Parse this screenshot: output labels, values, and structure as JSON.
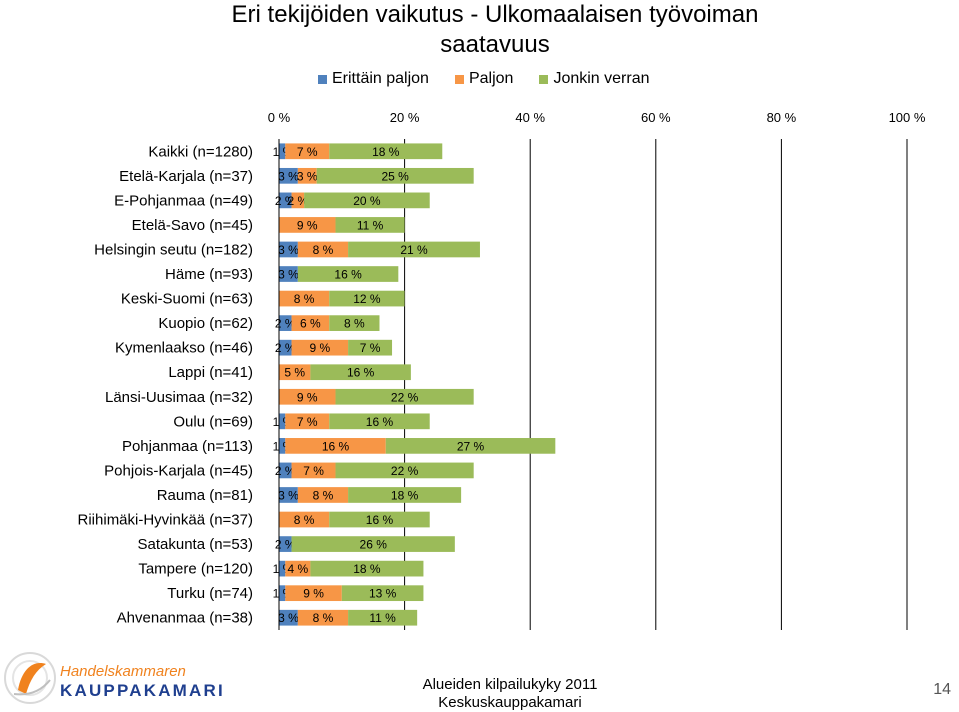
{
  "chart_data": {
    "type": "bar",
    "stacked": true,
    "orientation": "horizontal",
    "title": "Eri tekijöiden vaikutus - Ulkomaalaisen työvoiman saatavuus",
    "xlim": [
      0,
      100
    ],
    "x_ticks": [
      "0 %",
      "20 %",
      "40 %",
      "60 %",
      "80 %",
      "100 %"
    ],
    "legend_position": "top",
    "categories": [
      "Kaikki (n=1280)",
      "Etelä-Karjala (n=37)",
      "E-Pohjanmaa (n=49)",
      "Etelä-Savo (n=45)",
      "Helsingin seutu (n=182)",
      "Häme (n=93)",
      "Keski-Suomi (n=63)",
      "Kuopio (n=62)",
      "Kymenlaakso (n=46)",
      "Lappi (n=41)",
      "Länsi-Uusimaa (n=32)",
      "Oulu (n=69)",
      "Pohjanmaa (n=113)",
      "Pohjois-Karjala (n=45)",
      "Rauma (n=81)",
      "Riihimäki-Hyvinkää (n=37)",
      "Satakunta (n=53)",
      "Tampere (n=120)",
      "Turku (n=74)",
      "Ahvenanmaa (n=38)"
    ],
    "series": [
      {
        "name": "Erittäin paljon",
        "color": "#4F81BD",
        "values": [
          1,
          3,
          2,
          0,
          3,
          3,
          0,
          2,
          2,
          0,
          0,
          1,
          1,
          2,
          3,
          0,
          2,
          1,
          1,
          3
        ],
        "labels": [
          "1 %",
          "3 %",
          "2 %",
          "",
          "3 %",
          "3 %",
          "",
          "2 %",
          "2 %",
          "",
          "",
          "1 %",
          "1 %",
          "2 %",
          "3 %",
          "",
          "2 %",
          "1 %",
          "1 %",
          "3 %"
        ]
      },
      {
        "name": "Paljon",
        "color": "#F79646",
        "values": [
          7,
          3,
          2,
          9,
          8,
          0,
          8,
          6,
          9,
          5,
          9,
          7,
          16,
          7,
          8,
          8,
          0,
          4,
          9,
          8
        ],
        "labels": [
          "7 %",
          "3 %",
          "2 %",
          "9 %",
          "8 %",
          "",
          "8 %",
          "6 %",
          "9 %",
          "5 %",
          "9 %",
          "7 %",
          "16 %",
          "7 %",
          "8 %",
          "8 %",
          "",
          "4 %",
          "9 %",
          "8 %"
        ]
      },
      {
        "name": "Jonkin verran",
        "color": "#9BBB59",
        "values": [
          18,
          25,
          20,
          11,
          21,
          16,
          12,
          8,
          7,
          16,
          22,
          16,
          27,
          22,
          18,
          16,
          26,
          18,
          13,
          11
        ],
        "labels": [
          "18 %",
          "25 %",
          "20 %",
          "11 %",
          "21 %",
          "16 %",
          "12 %",
          "8 %",
          "7 %",
          "16 %",
          "22 %",
          "16 %",
          "27 %",
          "22 %",
          "18 %",
          "16 %",
          "26 %",
          "18 %",
          "13 %",
          "11 %"
        ]
      }
    ]
  },
  "footer": {
    "logo_line1": "Handelskammaren",
    "logo_line2": "KAUPPAKAMARI",
    "text_line1": "Alueiden kilpailukyky 2011",
    "text_line2": "Keskuskauppakamari",
    "page_number": "14"
  },
  "colors": {
    "accent_orange": "#F0821E",
    "logo_blue": "#1F3F8F"
  }
}
